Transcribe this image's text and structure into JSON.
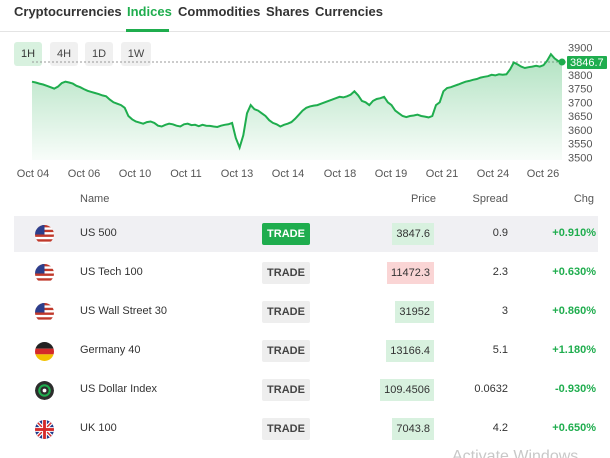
{
  "tabs": [
    "Cryptocurrencies",
    "Indices",
    "Commodities",
    "Shares",
    "Currencies"
  ],
  "active_tab": "Indices",
  "timeframes": [
    "1H",
    "4H",
    "1D",
    "1W"
  ],
  "active_timeframe": "1H",
  "chart_data": {
    "type": "area",
    "x_labels": [
      "Oct 04",
      "Oct 06",
      "Oct 10",
      "Oct 11",
      "Oct 13",
      "Oct 14",
      "Oct 18",
      "Oct 19",
      "Oct 21",
      "Oct 24",
      "Oct 26"
    ],
    "y_ticks": [
      3900,
      3850,
      3800,
      3750,
      3700,
      3650,
      3600,
      3550,
      3500
    ],
    "ylim": [
      3490,
      3905
    ],
    "current_price_label": "3846.7",
    "current_price": 3846.7,
    "values": [
      3775,
      3772,
      3768,
      3765,
      3760,
      3755,
      3750,
      3757,
      3770,
      3775,
      3772,
      3768,
      3760,
      3755,
      3748,
      3742,
      3738,
      3734,
      3730,
      3725,
      3722,
      3710,
      3700,
      3695,
      3690,
      3680,
      3650,
      3638,
      3630,
      3626,
      3622,
      3628,
      3630,
      3625,
      3615,
      3612,
      3618,
      3622,
      3620,
      3615,
      3612,
      3620,
      3622,
      3617,
      3618,
      3613,
      3618,
      3615,
      3614,
      3612,
      3610,
      3615,
      3618,
      3620,
      3625,
      3570,
      3535,
      3580,
      3660,
      3690,
      3675,
      3670,
      3660,
      3650,
      3635,
      3625,
      3620,
      3612,
      3618,
      3622,
      3628,
      3640,
      3655,
      3670,
      3680,
      3685,
      3688,
      3690,
      3695,
      3700,
      3705,
      3710,
      3715,
      3720,
      3718,
      3722,
      3728,
      3740,
      3725,
      3705,
      3700,
      3690,
      3705,
      3712,
      3715,
      3720,
      3700,
      3690,
      3670,
      3660,
      3650,
      3646,
      3650,
      3652,
      3655,
      3650,
      3648,
      3645,
      3650,
      3690,
      3700,
      3740,
      3752,
      3755,
      3760,
      3765,
      3770,
      3775,
      3778,
      3782,
      3785,
      3790,
      3793,
      3795,
      3800,
      3798,
      3802,
      3800,
      3802,
      3820,
      3845,
      3838,
      3830,
      3825,
      3828,
      3830,
      3833,
      3830,
      3835,
      3852,
      3875,
      3860,
      3850,
      3846.7
    ]
  },
  "columns": {
    "name": "Name",
    "price": "Price",
    "spread": "Spread",
    "chg": "Chg"
  },
  "trade_label": "TRADE",
  "rows": [
    {
      "name": "US 500",
      "price": "3847.6",
      "spread": "0.9",
      "chg": "+0.910%",
      "flag": "us-flag-icon",
      "selected": true,
      "dir": "up"
    },
    {
      "name": "US Tech 100",
      "price": "11472.3",
      "spread": "2.3",
      "chg": "+0.630%",
      "flag": "us-flag-icon",
      "selected": false,
      "dir": "down"
    },
    {
      "name": "US Wall Street 30",
      "price": "31952",
      "spread": "3",
      "chg": "+0.860%",
      "flag": "us-flag-icon",
      "selected": false,
      "dir": "up"
    },
    {
      "name": "Germany 40",
      "price": "13166.4",
      "spread": "5.1",
      "chg": "+1.180%",
      "flag": "germany-flag-icon",
      "selected": false,
      "dir": "up"
    },
    {
      "name": "US Dollar Index",
      "price": "109.4506",
      "spread": "0.0632",
      "chg": "-0.930%",
      "flag": "dollar-index-icon",
      "selected": false,
      "dir": "up"
    },
    {
      "name": "UK 100",
      "price": "7043.8",
      "spread": "4.2",
      "chg": "+0.650%",
      "flag": "uk-flag-icon",
      "selected": false,
      "dir": "up"
    }
  ],
  "watermark_text": "Activate Windows",
  "colors": {
    "accent": "#1fad4e",
    "up_bg": "#d8f1df",
    "down_bg": "#fad5d5"
  }
}
